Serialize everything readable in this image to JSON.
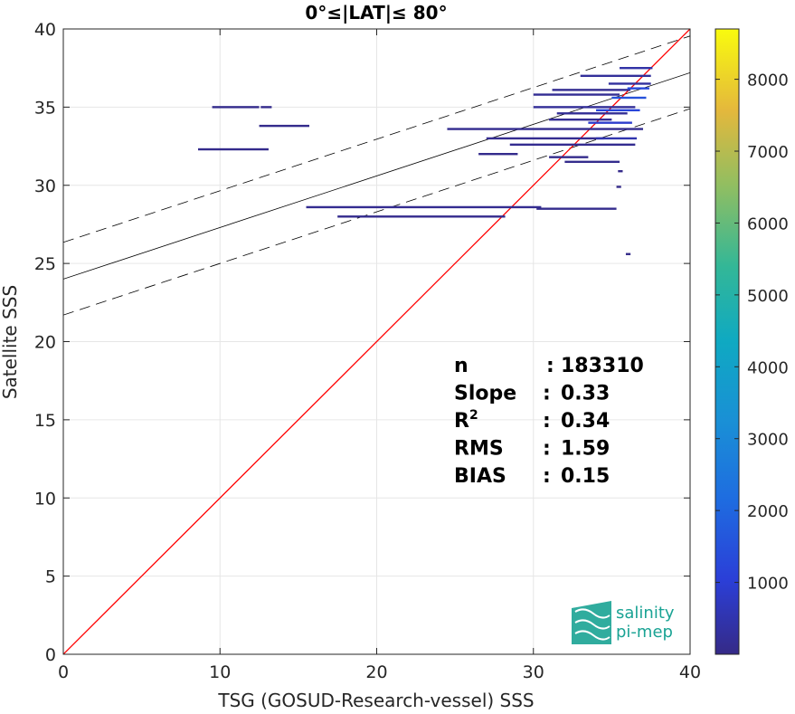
{
  "chart_data": {
    "type": "heatmap",
    "title": "0°≤|LAT|≤ 80°",
    "xlabel": "TSG (GOSUD-Research-vessel) SSS",
    "ylabel": "Satellite SSS",
    "xlim": [
      0,
      40
    ],
    "ylim": [
      0,
      40
    ],
    "xticks": [
      0,
      10,
      20,
      30,
      40
    ],
    "yticks": [
      0,
      5,
      10,
      15,
      20,
      25,
      30,
      35,
      40
    ],
    "grid": true,
    "colorbar": {
      "min": 0,
      "max": 8700,
      "ticks": [
        1000,
        2000,
        3000,
        4000,
        5000,
        6000,
        7000,
        8000
      ],
      "colormap": "parula"
    },
    "identity_line": {
      "slope": 1,
      "intercept": 0,
      "color": "#ff0000"
    },
    "fit_line": {
      "slope": 0.33,
      "intercept": 24.0,
      "color": "#000000"
    },
    "fit_bounds": [
      {
        "slope": 0.33,
        "intercept": 26.35
      },
      {
        "slope": 0.33,
        "intercept": 21.7
      }
    ],
    "density_segments": [
      {
        "x0": 9.5,
        "x1": 12.5,
        "y": 35.0,
        "count": 60
      },
      {
        "x0": 12.6,
        "x1": 13.3,
        "y": 35.0,
        "count": 60
      },
      {
        "x0": 12.5,
        "x1": 15.7,
        "y": 33.8,
        "count": 60
      },
      {
        "x0": 8.6,
        "x1": 13.1,
        "y": 32.3,
        "count": 60
      },
      {
        "x0": 15.5,
        "x1": 30.5,
        "y": 28.6,
        "count": 120
      },
      {
        "x0": 30.2,
        "x1": 35.3,
        "y": 28.5,
        "count": 80
      },
      {
        "x0": 17.5,
        "x1": 28.2,
        "y": 28.0,
        "count": 90
      },
      {
        "x0": 24.5,
        "x1": 37.0,
        "y": 33.6,
        "count": 100
      },
      {
        "x0": 27.0,
        "x1": 34.5,
        "y": 33.0,
        "count": 120
      },
      {
        "x0": 28.5,
        "x1": 36.5,
        "y": 32.6,
        "count": 110
      },
      {
        "x0": 26.5,
        "x1": 29.0,
        "y": 32.0,
        "count": 60
      },
      {
        "x0": 31.0,
        "x1": 35.0,
        "y": 34.2,
        "count": 150
      },
      {
        "x0": 31.5,
        "x1": 36.0,
        "y": 34.6,
        "count": 180
      },
      {
        "x0": 30.0,
        "x1": 36.5,
        "y": 35.0,
        "count": 200
      },
      {
        "x0": 30.0,
        "x1": 35.5,
        "y": 35.8,
        "count": 160
      },
      {
        "x0": 31.2,
        "x1": 36.2,
        "y": 36.1,
        "count": 140
      },
      {
        "x0": 34.8,
        "x1": 37.5,
        "y": 36.5,
        "count": 300
      },
      {
        "x0": 33.0,
        "x1": 37.5,
        "y": 37.0,
        "count": 250
      },
      {
        "x0": 35.5,
        "x1": 37.6,
        "y": 37.5,
        "count": 400
      },
      {
        "x0": 34.0,
        "x1": 36.6,
        "y": 33.0,
        "count": 500
      },
      {
        "x0": 33.5,
        "x1": 36.3,
        "y": 34.0,
        "count": 900
      },
      {
        "x0": 34.0,
        "x1": 36.8,
        "y": 34.8,
        "count": 1200
      },
      {
        "x0": 35.0,
        "x1": 37.2,
        "y": 35.6,
        "count": 1500
      },
      {
        "x0": 36.0,
        "x1": 37.4,
        "y": 36.2,
        "count": 1300
      },
      {
        "x0": 32.0,
        "x1": 35.5,
        "y": 31.5,
        "count": 80
      },
      {
        "x0": 31.0,
        "x1": 33.5,
        "y": 31.8,
        "count": 60
      },
      {
        "x0": 35.3,
        "x1": 35.6,
        "y": 29.9,
        "count": 40
      },
      {
        "x0": 35.9,
        "x1": 36.2,
        "y": 25.6,
        "count": 40
      },
      {
        "x0": 35.4,
        "x1": 35.7,
        "y": 30.9,
        "count": 40
      }
    ],
    "stats": [
      {
        "label": "n",
        "sep": ":",
        "value": "183310"
      },
      {
        "label": "Slope",
        "sep": ":",
        "value": "0.33"
      },
      {
        "label": "R",
        "sup": "2",
        "sep": ":",
        "value": "0.34"
      },
      {
        "label": "RMS",
        "sep": ":",
        "value": "1.59"
      },
      {
        "label": "BIAS",
        "sep": ":",
        "value": "0.15"
      }
    ]
  },
  "logo": {
    "line1": "salinity",
    "line2": "pi-mep",
    "color": "#1aa394"
  }
}
